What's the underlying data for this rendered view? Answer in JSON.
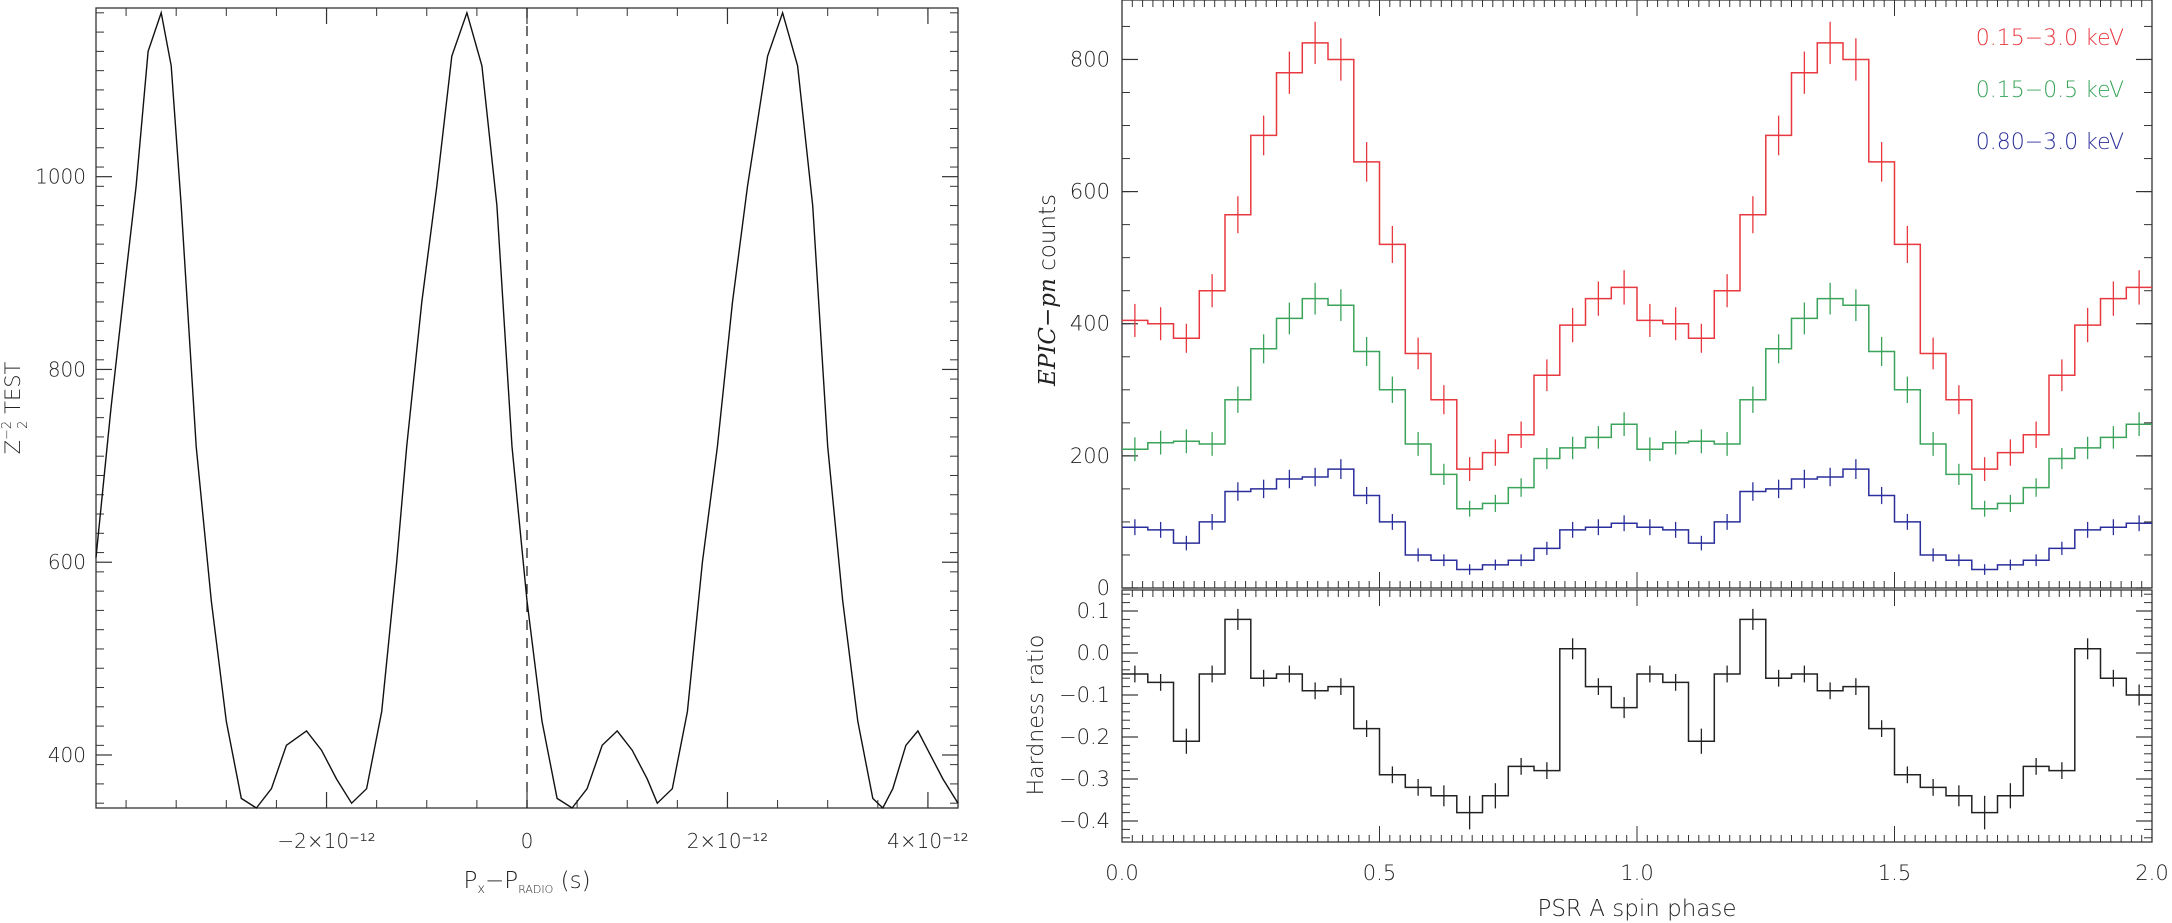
{
  "chart_data": [
    {
      "type": "line",
      "panel": "left",
      "ylabel_main": "Z",
      "ylabel_sup": "−2",
      "ylabel_sub": "2",
      "ylabel_rest": " TEST",
      "xlabel_main": "P",
      "xlabel_sub1": "x",
      "xlabel_mid": "−P",
      "xlabel_sub2": "RADIO",
      "xlabel_rest": " (s)",
      "xlim": [
        -4.3,
        4.3
      ],
      "ylim": [
        345,
        1175
      ],
      "x_ticks": [
        {
          "v": -2,
          "label": "−2×10⁻¹²"
        },
        {
          "v": 0,
          "label": "0"
        },
        {
          "v": 2,
          "label": "2×10⁻¹²"
        },
        {
          "v": 4,
          "label": "4×10⁻¹²"
        }
      ],
      "y_ticks": [
        {
          "v": 400,
          "label": "400"
        },
        {
          "v": 600,
          "label": "600"
        },
        {
          "v": 800,
          "label": "800"
        },
        {
          "v": 1000,
          "label": "1000"
        }
      ],
      "x_unit_note": "x values in units of 1e-12 s",
      "dashed_line_x": 0,
      "x": [
        -4.3,
        -4.15,
        -4.0,
        -3.9,
        -3.78,
        -3.65,
        -3.55,
        -3.45,
        -3.3,
        -3.15,
        -3.0,
        -2.85,
        -2.7,
        -2.55,
        -2.4,
        -2.2,
        -2.05,
        -1.9,
        -1.75,
        -1.6,
        -1.45,
        -1.3,
        -1.2,
        -1.05,
        -0.9,
        -0.75,
        -0.6,
        -0.45,
        -0.3,
        -0.15,
        0.0,
        0.15,
        0.3,
        0.45,
        0.6,
        0.75,
        0.9,
        1.05,
        1.2,
        1.3,
        1.45,
        1.6,
        1.75,
        1.9,
        2.05,
        2.2,
        2.4,
        2.55,
        2.7,
        2.85,
        3.0,
        3.15,
        3.3,
        3.45,
        3.55,
        3.65,
        3.78,
        3.9,
        4.0,
        4.15,
        4.3
      ],
      "y": [
        605,
        760,
        900,
        990,
        1130,
        1170,
        1115,
        970,
        720,
        560,
        435,
        355,
        345,
        365,
        410,
        425,
        405,
        375,
        350,
        365,
        445,
        600,
        720,
        870,
        990,
        1125,
        1170,
        1115,
        970,
        720,
        560,
        435,
        355,
        345,
        365,
        410,
        425,
        405,
        375,
        350,
        365,
        445,
        600,
        720,
        870,
        990,
        1125,
        1170,
        1115,
        970,
        720,
        560,
        435,
        355,
        345,
        365,
        410,
        425,
        405,
        375,
        350
      ]
    },
    {
      "type": "line",
      "panel": "right-top",
      "subtype": "step-histogram-with-errors",
      "ylabel_italic": "EPIC−pn",
      "ylabel_rest": " counts",
      "xlim": [
        0,
        2
      ],
      "ylim": [
        0,
        890
      ],
      "y_ticks": [
        {
          "v": 0,
          "label": "0"
        },
        {
          "v": 200,
          "label": "200"
        },
        {
          "v": 400,
          "label": "400"
        },
        {
          "v": 600,
          "label": "600"
        },
        {
          "v": 800,
          "label": "800"
        }
      ],
      "bins_per_cycle": 20,
      "legend": "top-right",
      "series": [
        {
          "name": "0.15−3.0 keV",
          "color": "#e8383f",
          "values": [
            405,
            400,
            378,
            450,
            565,
            685,
            780,
            825,
            800,
            645,
            520,
            355,
            285,
            180,
            205,
            232,
            322,
            398,
            438,
            455
          ],
          "errors": [
            25,
            25,
            22,
            25,
            28,
            30,
            32,
            32,
            32,
            30,
            28,
            24,
            22,
            18,
            20,
            20,
            24,
            26,
            26,
            26
          ]
        },
        {
          "name": "0.15−0.5 keV",
          "color": "#3aa35a",
          "values": [
            210,
            220,
            222,
            218,
            285,
            362,
            408,
            438,
            428,
            358,
            300,
            218,
            172,
            120,
            128,
            152,
            196,
            212,
            228,
            248
          ],
          "errors": [
            18,
            18,
            18,
            18,
            20,
            22,
            24,
            24,
            24,
            22,
            20,
            18,
            16,
            12,
            13,
            14,
            16,
            17,
            17,
            18
          ]
        },
        {
          "name": "0.80−3.0 keV",
          "color": "#2b2f9b",
          "values": [
            92,
            88,
            68,
            100,
            146,
            150,
            165,
            168,
            180,
            140,
            100,
            50,
            42,
            28,
            35,
            42,
            60,
            88,
            92,
            98
          ],
          "errors": [
            12,
            12,
            11,
            12,
            14,
            14,
            14,
            14,
            15,
            13,
            12,
            10,
            9,
            8,
            8,
            9,
            10,
            12,
            12,
            12
          ]
        }
      ]
    },
    {
      "type": "line",
      "panel": "right-bottom",
      "subtype": "step-histogram-with-errors",
      "ylabel": "Hardness ratio",
      "xlabel": "PSR A spin phase",
      "xlim": [
        0,
        2
      ],
      "ylim": [
        -0.45,
        0.15
      ],
      "x_ticks": [
        {
          "v": 0,
          "label": "0.0"
        },
        {
          "v": 0.5,
          "label": "0.5"
        },
        {
          "v": 1.0,
          "label": "1.0"
        },
        {
          "v": 1.5,
          "label": "1.5"
        },
        {
          "v": 2.0,
          "label": "2.0"
        }
      ],
      "y_ticks": [
        {
          "v": -0.4,
          "label": "−0.4"
        },
        {
          "v": -0.3,
          "label": "−0.3"
        },
        {
          "v": -0.2,
          "label": "−0.2"
        },
        {
          "v": -0.1,
          "label": "−0.1"
        },
        {
          "v": 0.0,
          "label": "0.0"
        },
        {
          "v": 0.1,
          "label": "0.1"
        }
      ],
      "color": "#222222",
      "values": [
        -0.05,
        -0.07,
        -0.21,
        -0.05,
        0.08,
        -0.06,
        -0.05,
        -0.09,
        -0.08,
        -0.18,
        -0.29,
        -0.32,
        -0.34,
        -0.38,
        -0.34,
        -0.27,
        -0.28,
        0.01,
        -0.08,
        -0.13,
        -0.05,
        -0.07,
        -0.21,
        -0.05,
        0.08,
        -0.06,
        -0.05,
        -0.09,
        -0.08,
        -0.18,
        -0.29,
        -0.32,
        -0.34,
        -0.38,
        -0.34,
        -0.27,
        -0.28,
        0.01,
        -0.06,
        -0.1
      ],
      "errors": [
        0.02,
        0.02,
        0.03,
        0.02,
        0.025,
        0.02,
        0.02,
        0.02,
        0.02,
        0.02,
        0.02,
        0.02,
        0.025,
        0.04,
        0.03,
        0.02,
        0.02,
        0.025,
        0.02,
        0.025,
        0.02,
        0.02,
        0.03,
        0.02,
        0.025,
        0.02,
        0.02,
        0.02,
        0.02,
        0.02,
        0.02,
        0.02,
        0.025,
        0.04,
        0.03,
        0.02,
        0.02,
        0.025,
        0.02,
        0.025
      ]
    }
  ]
}
